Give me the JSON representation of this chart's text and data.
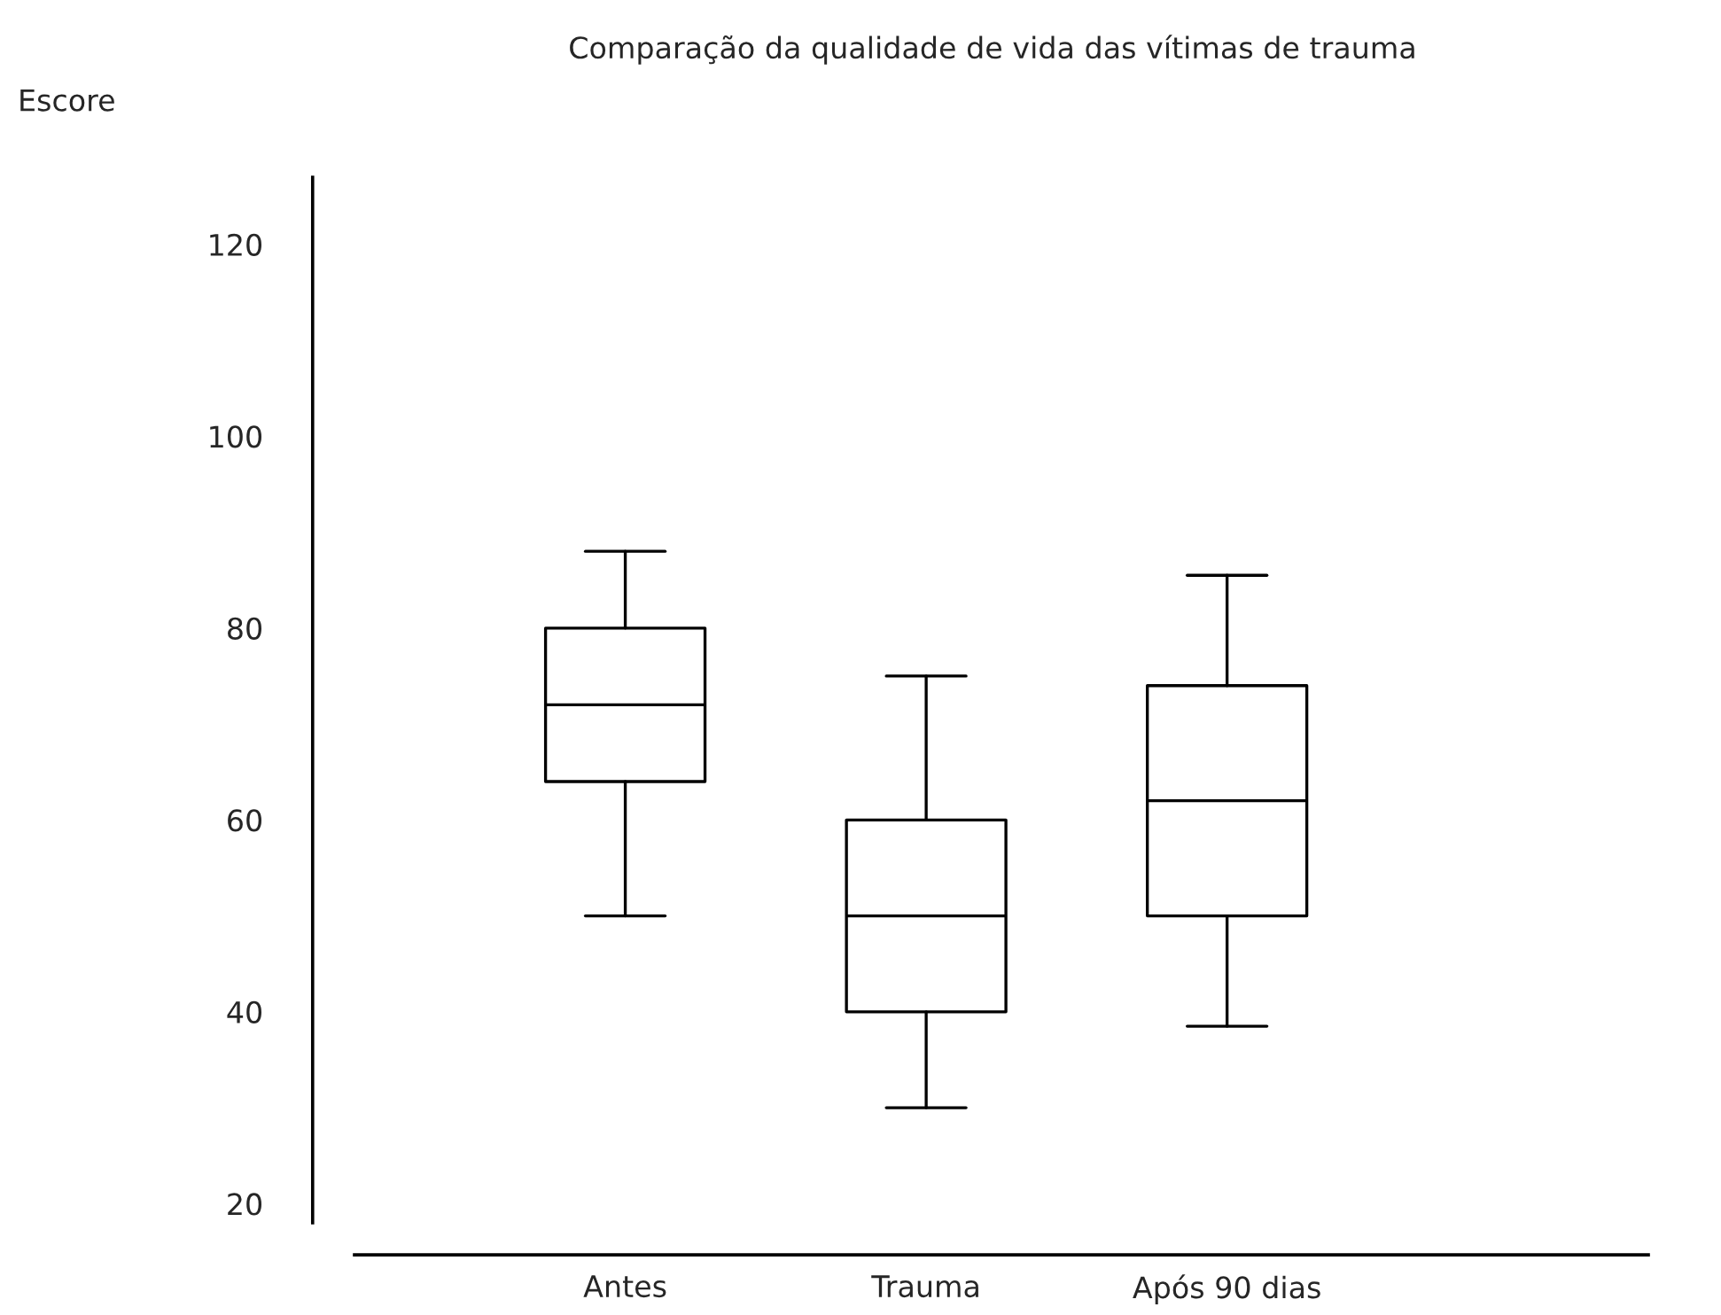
{
  "chart_data": {
    "type": "box",
    "title": "Comparação da qualidade de vida das vítimas de trauma",
    "ylabel": "Escore",
    "categories": [
      "Antes",
      "Trauma",
      "Após 90 dias"
    ],
    "boxes": [
      {
        "low": 50,
        "q1": 64,
        "median": 72,
        "q3": 80,
        "high": 88
      },
      {
        "low": 30,
        "q1": 40,
        "median": 50,
        "q3": 60,
        "high": 75
      },
      {
        "low": 38.5,
        "q1": 50,
        "median": 62,
        "q3": 74,
        "high": 85.5
      }
    ],
    "color": "#000000",
    "ylim": [
      18,
      127
    ],
    "yticks": [
      20,
      40,
      60,
      80,
      100,
      120
    ],
    "grid": false,
    "legend": false
  }
}
